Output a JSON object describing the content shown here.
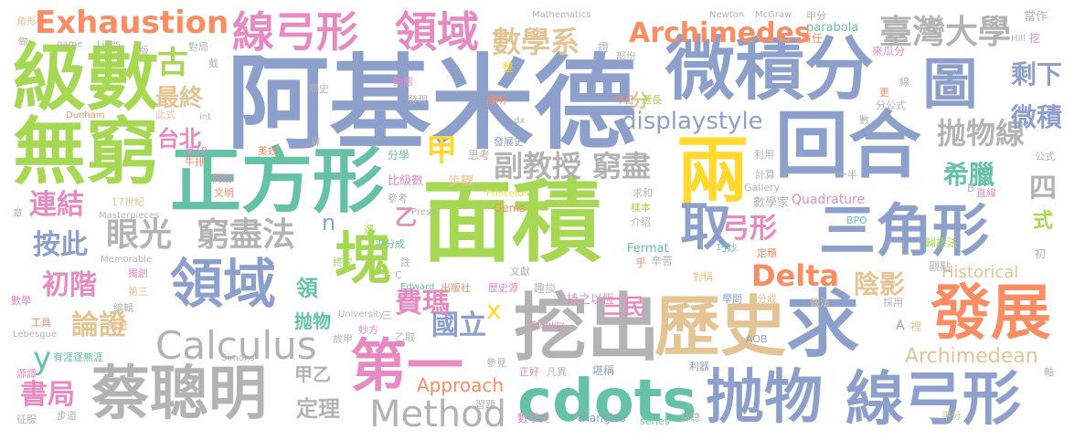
{
  "palette": {
    "blue": "#8DA0CB",
    "green": "#A6D854",
    "teal": "#66C2A5",
    "orange": "#FC8D62",
    "pink": "#E78AC3",
    "yellow": "#FFD92F",
    "tan": "#E5C494",
    "gray": "#B3B3B3"
  },
  "words": [
    "面積",
    "阿基米德",
    "微積分",
    "回合",
    "正方形",
    "無窮",
    "級數",
    "兩",
    "三角形",
    "求",
    "挖出",
    "歷史",
    "發展",
    "蔡聰明",
    "抛物",
    "線弓形",
    "cdots",
    "領域",
    "塊",
    "第一",
    "取",
    "Calculus",
    "圖",
    "線弓形",
    "領域",
    "Exhaustion",
    "Archimedes",
    "臺灣大學",
    "數學系",
    "displaystyle",
    "Delta",
    "Method",
    "副教授",
    "窮盡",
    "眼光",
    "窮盡法",
    "抛物線",
    "希臘",
    "剩下",
    "微積",
    "國立",
    "費瑪",
    "陰影",
    "連結",
    "按此",
    "初階",
    "論證",
    "書局",
    "Archimedean",
    "Historical",
    "最終",
    "台北",
    "古",
    "甲",
    "弓形",
    "三民",
    "y",
    "x",
    "n",
    "乙",
    "定理",
    "Approach",
    "領",
    "抛物",
    "甲乙",
    "四",
    "式",
    "分",
    "Quadrature",
    "求和",
    "數學家",
    "Fermat",
    "Press",
    "Gems",
    "Princeton",
    "步驟",
    "比級數",
    "分學",
    "思考",
    "發展史",
    "文獻",
    "趣談",
    "持之以恆",
    "平分成",
    "註",
    "介紹",
    "樣本",
    "乎",
    "辛苦",
    "對稱",
    "利器",
    "AOB",
    "觀點",
    "採用",
    "學問",
    "分成",
    "做法",
    "初",
    "裡",
    "A",
    "BPO",
    "直線",
    "B",
    "公式",
    "利用",
    "一半",
    "計算",
    "Gallery",
    "巧妙",
    "歸謬法",
    "定積",
    "Toeplitz",
    "University",
    "Edward",
    "出版社",
    "歷史源",
    "乙取",
    "三",
    "妙方",
    "參見",
    "正好",
    "凡異",
    "堪稱",
    "習題",
    "數學史",
    "triangles",
    "series",
    "林聰",
    "平分",
    "軸",
    "Mathematics",
    "Newton",
    "McGraw",
    "Hill",
    "當作",
    "挖",
    "甲分",
    "parabola",
    "責任",
    "來瓜分",
    "線",
    "更",
    "分公式",
    "數",
    "今日",
    "選長",
    "dx",
    "證明",
    "發現",
    "學史",
    "動態",
    "整",
    "證",
    "部份",
    "int",
    "Dunham",
    "此式",
    "截",
    "版",
    "Lives",
    "game",
    "對局",
    "角形",
    "做",
    "牛排",
    "第19",
    "美妙",
    "算",
    "間接",
    "文明",
    "17世紀",
    "Masterpieces",
    "章",
    "參考",
    "選",
    "終究",
    "C",
    "Memorable",
    "獨創",
    "第三",
    "編輯",
    "數學",
    "工具",
    "總量",
    "Lebesgue",
    "有涯逐無涯",
    "源譯",
    "Simons",
    "故甲",
    "征服",
    "步道"
  ]
}
